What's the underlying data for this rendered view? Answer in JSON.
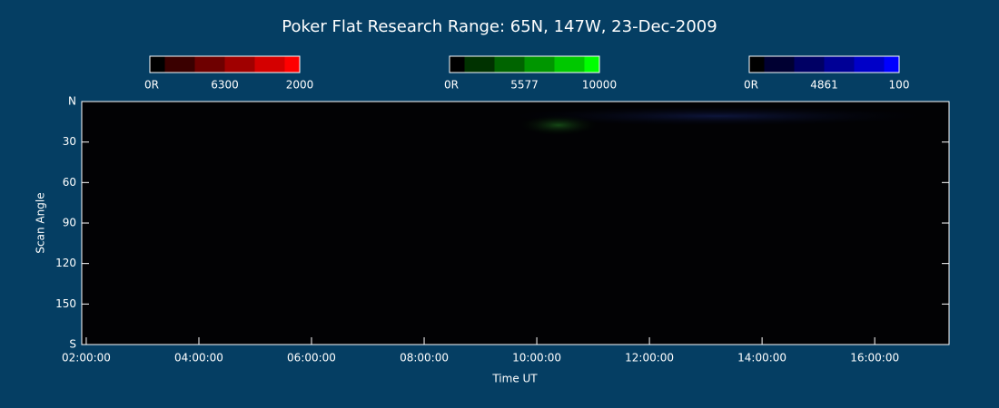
{
  "chart_data": {
    "type": "keogram",
    "title": "Poker Flat Research Range: 65N, 147W, 23-Dec-2009",
    "x_label": "Time UT",
    "y_label": "Scan Angle",
    "xlim": [
      1.92,
      17.32
    ],
    "xticks": [
      {
        "value": 2,
        "label": "02:00:00"
      },
      {
        "value": 4,
        "label": "04:00:00"
      },
      {
        "value": 6,
        "label": "06:00:00"
      },
      {
        "value": 8,
        "label": "08:00:00"
      },
      {
        "value": 10,
        "label": "10:00:00"
      },
      {
        "value": 12,
        "label": "12:00:00"
      },
      {
        "value": 14,
        "label": "14:00:00"
      },
      {
        "value": 16,
        "label": "16:00:00"
      }
    ],
    "ylim": [
      0,
      180
    ],
    "yticks": [
      {
        "value": 0,
        "label": "N"
      },
      30,
      60,
      90,
      120,
      150,
      {
        "value": 180,
        "label": "S"
      }
    ],
    "colorbars": [
      {
        "min_label": "0R",
        "name": "6300",
        "max": 2000,
        "colors": [
          "#000000",
          "#3a0000",
          "#6e0000",
          "#a00000",
          "#d40000",
          "#ff0000"
        ]
      },
      {
        "min_label": "0R",
        "name": "5577",
        "max": 10000,
        "colors": [
          "#000000",
          "#003200",
          "#006400",
          "#009600",
          "#00c800",
          "#00ff00"
        ]
      },
      {
        "min_label": "0R",
        "name": "4861",
        "max": 100,
        "colors": [
          "#000000",
          "#000032",
          "#000064",
          "#000096",
          "#0000c8",
          "#0000ff"
        ]
      }
    ]
  }
}
